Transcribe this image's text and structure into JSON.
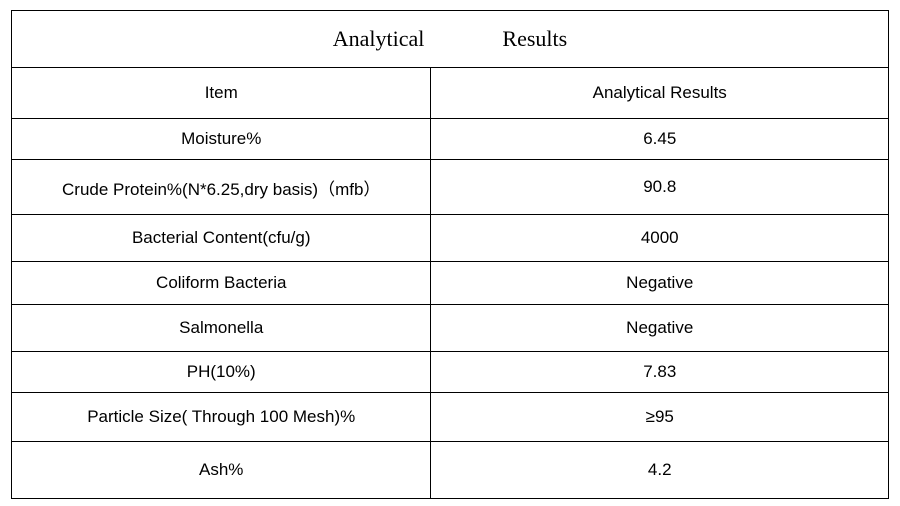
{
  "table": {
    "title": "Analytical    Results",
    "headers": [
      "Item",
      "Analytical Results"
    ],
    "rows": [
      {
        "item": "Moisture%",
        "result": "6.45"
      },
      {
        "item": "Crude Protein%(N*6.25,dry basis)（mfb）",
        "result": "90.8"
      },
      {
        "item": "Bacterial Content(cfu/g)",
        "result": "4000"
      },
      {
        "item": "Coliform Bacteria",
        "result": "Negative"
      },
      {
        "item": "Salmonella",
        "result": "Negative"
      },
      {
        "item": "PH(10%)",
        "result": "7.83"
      },
      {
        "item": "Particle Size( Through 100 Mesh)%",
        "result": "≥95"
      },
      {
        "item": "Ash%",
        "result": "4.2"
      }
    ]
  }
}
